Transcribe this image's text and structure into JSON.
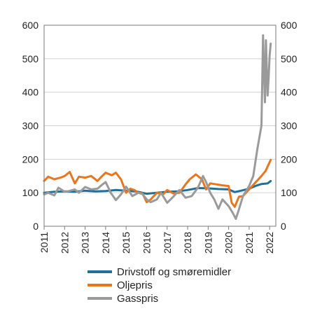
{
  "chart_data": {
    "type": "line",
    "title": "",
    "xlabel": "",
    "ylabel": "",
    "ylim": [
      0,
      600
    ],
    "xlim": [
      2011,
      2022.3
    ],
    "y_ticks": [
      "0",
      "100",
      "200",
      "300",
      "400",
      "500",
      "600"
    ],
    "x_ticks": [
      "2011",
      "2012",
      "2013",
      "2014",
      "2015",
      "2016",
      "2017",
      "2018",
      "2019",
      "2020",
      "2021",
      "2022"
    ],
    "grid": true,
    "legend_position": "bottom",
    "series": [
      {
        "name": "Drivstoff og smøremidler",
        "color": "#1f6f9a",
        "x": [
          2011.0,
          2011.5,
          2012.0,
          2012.5,
          2013.0,
          2013.5,
          2014.0,
          2014.5,
          2015.0,
          2015.5,
          2016.0,
          2016.5,
          2017.0,
          2017.5,
          2018.0,
          2018.5,
          2019.0,
          2019.5,
          2020.0,
          2020.3,
          2020.6,
          2021.0,
          2021.3,
          2021.6,
          2021.9,
          2022.05
        ],
        "y": [
          100,
          103,
          104,
          103,
          106,
          104,
          105,
          108,
          106,
          104,
          97,
          100,
          103,
          104,
          108,
          114,
          113,
          111,
          110,
          102,
          106,
          112,
          120,
          126,
          128,
          135
        ]
      },
      {
        "name": "Oljepris",
        "color": "#e8761e",
        "x": [
          2011.0,
          2011.2,
          2011.5,
          2011.8,
          2012.0,
          2012.25,
          2012.5,
          2012.7,
          2013.0,
          2013.3,
          2013.6,
          2013.8,
          2014.0,
          2014.3,
          2014.5,
          2014.75,
          2015.0,
          2015.2,
          2015.4,
          2015.6,
          2015.8,
          2016.0,
          2016.2,
          2016.5,
          2016.8,
          2017.0,
          2017.3,
          2017.6,
          2017.9,
          2018.1,
          2018.4,
          2018.7,
          2018.9,
          2019.1,
          2019.4,
          2019.7,
          2020.0,
          2020.15,
          2020.3,
          2020.5,
          2020.7,
          2021.0,
          2021.3,
          2021.6,
          2021.8,
          2022.05
        ],
        "y": [
          135,
          148,
          140,
          145,
          150,
          162,
          128,
          148,
          145,
          150,
          135,
          148,
          160,
          152,
          160,
          140,
          100,
          112,
          108,
          100,
          98,
          72,
          80,
          100,
          95,
          108,
          98,
          100,
          125,
          140,
          155,
          140,
          110,
          128,
          125,
          122,
          120,
          70,
          58,
          88,
          90,
          110,
          130,
          150,
          165,
          198
        ]
      },
      {
        "name": "Gasspris",
        "color": "#9a9a9a",
        "x": [
          2011.0,
          2011.2,
          2011.5,
          2011.7,
          2012.0,
          2012.2,
          2012.5,
          2012.7,
          2013.0,
          2013.3,
          2013.6,
          2013.85,
          2014.0,
          2014.25,
          2014.5,
          2014.75,
          2015.0,
          2015.3,
          2015.6,
          2015.8,
          2016.0,
          2016.2,
          2016.5,
          2016.7,
          2017.0,
          2017.3,
          2017.6,
          2017.9,
          2018.2,
          2018.5,
          2018.75,
          2018.9,
          2019.1,
          2019.3,
          2019.5,
          2019.7,
          2020.0,
          2020.2,
          2020.35,
          2020.5,
          2020.7,
          2021.0,
          2021.2,
          2021.4,
          2021.6,
          2021.68,
          2021.73,
          2021.77,
          2021.82,
          2021.86,
          2021.9,
          2021.95,
          2022.0,
          2022.05
        ],
        "y": [
          95,
          100,
          92,
          115,
          103,
          105,
          110,
          100,
          117,
          110,
          112,
          125,
          132,
          100,
          78,
          95,
          118,
          90,
          100,
          96,
          80,
          72,
          80,
          100,
          70,
          88,
          108,
          85,
          90,
          115,
          150,
          132,
          100,
          80,
          52,
          80,
          60,
          40,
          22,
          50,
          90,
          120,
          150,
          230,
          300,
          570,
          450,
          370,
          555,
          470,
          390,
          440,
          510,
          545
        ]
      }
    ]
  }
}
